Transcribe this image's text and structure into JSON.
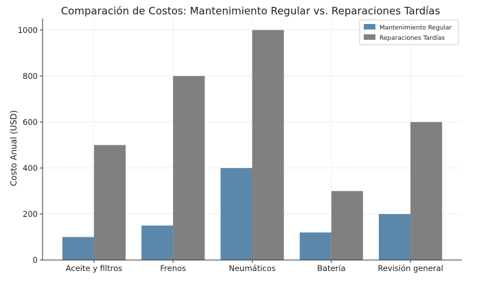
{
  "chart_data": {
    "type": "bar",
    "title": "Comparación de Costos: Mantenimiento Regular vs. Reparaciones Tardías",
    "xlabel": "",
    "ylabel": "Costo Anual (USD)",
    "categories": [
      "Aceite y filtros",
      "Frenos",
      "Neumáticos",
      "Batería",
      "Revisión general"
    ],
    "series": [
      {
        "name": "Mantenimiento Regular",
        "values": [
          100,
          150,
          400,
          120,
          200
        ],
        "color": "#5b88aa"
      },
      {
        "name": "Reparaciones Tardías",
        "values": [
          500,
          800,
          1000,
          300,
          600
        ],
        "color": "#808080"
      }
    ],
    "ylim": [
      0,
      1050
    ],
    "yticks": [
      0,
      200,
      400,
      600,
      800,
      1000
    ],
    "grid": true,
    "legend_position": "top-right"
  }
}
